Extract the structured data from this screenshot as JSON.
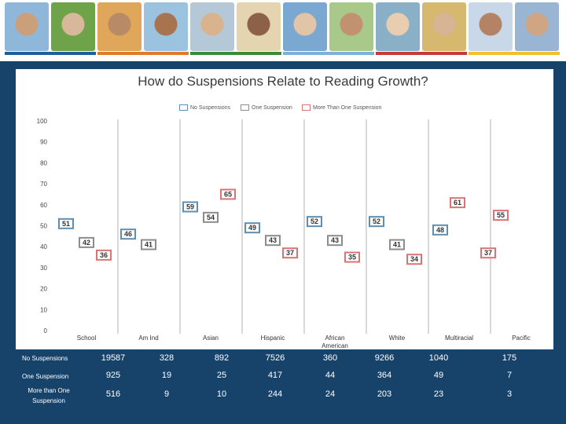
{
  "colors": {
    "no": "#5b8fb5",
    "one": "#8c8c8c",
    "more": "#d97474",
    "page_bg": "#17436b"
  },
  "banner": {
    "photos": [
      "student-1",
      "student-2",
      "student-3",
      "student-4",
      "student-5",
      "student-6",
      "student-7",
      "student-8",
      "student-9",
      "student-10",
      "student-11",
      "student-12"
    ]
  },
  "chart_data": {
    "type": "scatter",
    "title": "How do Suspensions Relate to Reading Growth?",
    "categories": [
      "School",
      "Am Ind",
      "Asian",
      "Hispanic",
      "African American",
      "White",
      "Multiracial",
      "Pacific"
    ],
    "ylim": [
      0,
      100
    ],
    "yticks": [
      "0",
      "10",
      "20",
      "30",
      "40",
      "50",
      "60",
      "70",
      "80",
      "90",
      "100"
    ],
    "series": [
      {
        "name": "No Suspensions",
        "values": [
          51,
          46,
          59,
          49,
          52,
          52,
          48,
          null
        ]
      },
      {
        "name": "One Suspension",
        "values": [
          42,
          41,
          54,
          43,
          43,
          41,
          null,
          null
        ]
      },
      {
        "name": "More Than One Suspension",
        "values": [
          36,
          null,
          65,
          37,
          35,
          34,
          61,
          55
        ]
      }
    ],
    "extra_points": [
      {
        "series": "More Than One Suspension",
        "category": "Pacific",
        "value": 37
      }
    ]
  },
  "legend": [
    "No Suspensions",
    "One Suspension",
    "More Than One Suspension"
  ],
  "table": {
    "rows": [
      {
        "label": "No Suspensions",
        "values": [
          "19587",
          "328",
          "892",
          "7526",
          "360",
          "9266",
          "1040",
          "175"
        ]
      },
      {
        "label": "One Suspension",
        "values": [
          "925",
          "19",
          "25",
          "417",
          "44",
          "364",
          "49",
          "7"
        ]
      },
      {
        "label": "More than One Suspension",
        "values": [
          "516",
          "9",
          "10",
          "244",
          "24",
          "203",
          "23",
          "3"
        ]
      }
    ]
  }
}
